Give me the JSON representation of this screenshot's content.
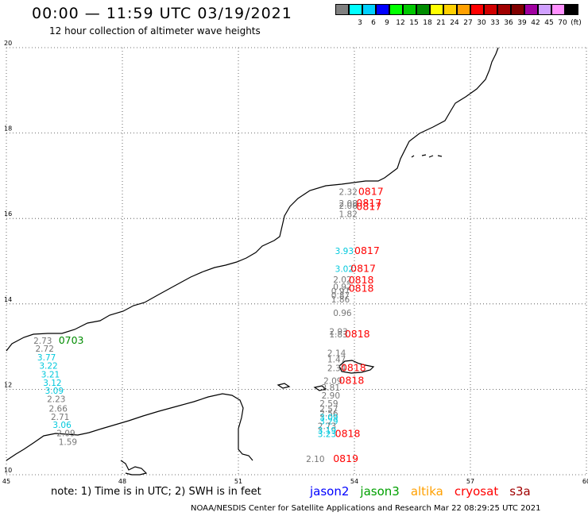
{
  "header": {
    "title": "00:00 — 11:59 UTC 03/19/2021",
    "subtitle": "12 hour collection of altimeter wave heights"
  },
  "scale": {
    "swatches": [
      {
        "label": "",
        "color": "#808080"
      },
      {
        "label": "3",
        "color": "#00ffff"
      },
      {
        "label": "6",
        "color": "#00d0ff"
      },
      {
        "label": "9",
        "color": "#0000ff"
      },
      {
        "label": "12",
        "color": "#00ff00"
      },
      {
        "label": "15",
        "color": "#00c800"
      },
      {
        "label": "18",
        "color": "#008c00"
      },
      {
        "label": "21",
        "color": "#ffff00"
      },
      {
        "label": "24",
        "color": "#ffd000"
      },
      {
        "label": "27",
        "color": "#ffa000"
      },
      {
        "label": "30",
        "color": "#ff0000"
      },
      {
        "label": "33",
        "color": "#d00000"
      },
      {
        "label": "36",
        "color": "#a00000"
      },
      {
        "label": "39",
        "color": "#800000"
      },
      {
        "label": "42",
        "color": "#a000a0"
      },
      {
        "label": "45",
        "color": "#d0a0ff"
      },
      {
        "label": "70",
        "color": "#ff90ff"
      },
      {
        "label": "(ft)",
        "color": "#000000"
      }
    ]
  },
  "map": {
    "lon_ticks": [
      "45",
      "48",
      "51",
      "54",
      "57",
      "60"
    ],
    "lat_ticks": [
      "20",
      "18",
      "16",
      "14",
      "12",
      "10"
    ],
    "colors": {
      "gray": "#777777",
      "cyan": "#00c8dc",
      "red": "#ff0000",
      "green": "#008c00"
    },
    "heights": [
      {
        "v": "2.32",
        "lon": 53.6,
        "lat": 16.55,
        "c": "gray"
      },
      {
        "v": "2.08",
        "lon": 53.6,
        "lat": 16.28,
        "c": "gray"
      },
      {
        "v": "2.08",
        "lon": 53.6,
        "lat": 16.23,
        "c": "gray"
      },
      {
        "v": "1.82",
        "lon": 53.6,
        "lat": 16.03,
        "c": "gray"
      },
      {
        "v": "3.93",
        "lon": 53.5,
        "lat": 15.17,
        "c": "cyan"
      },
      {
        "v": "3.02",
        "lon": 53.5,
        "lat": 14.75,
        "c": "cyan"
      },
      {
        "v": "2.02",
        "lon": 53.45,
        "lat": 14.5,
        "c": "gray"
      },
      {
        "v": "0.92",
        "lon": 53.45,
        "lat": 14.33,
        "c": "gray"
      },
      {
        "v": "0.97",
        "lon": 53.4,
        "lat": 14.23,
        "c": "gray"
      },
      {
        "v": "0.87",
        "lon": 53.4,
        "lat": 14.13,
        "c": "gray"
      },
      {
        "v": "1.86",
        "lon": 53.4,
        "lat": 14.03,
        "c": "gray"
      },
      {
        "v": "0.96",
        "lon": 53.45,
        "lat": 13.72,
        "c": "gray"
      },
      {
        "v": "2.93",
        "lon": 53.35,
        "lat": 13.28,
        "c": "gray"
      },
      {
        "v": "1.83",
        "lon": 53.35,
        "lat": 13.22,
        "c": "gray"
      },
      {
        "v": "2.73",
        "lon": 45.7,
        "lat": 13.07,
        "c": "gray"
      },
      {
        "v": "2.72",
        "lon": 45.75,
        "lat": 12.88,
        "c": "gray"
      },
      {
        "v": "3.77",
        "lon": 45.8,
        "lat": 12.68,
        "c": "cyan"
      },
      {
        "v": "3.22",
        "lon": 45.85,
        "lat": 12.48,
        "c": "cyan"
      },
      {
        "v": "3.21",
        "lon": 45.9,
        "lat": 12.28,
        "c": "cyan"
      },
      {
        "v": "3.12",
        "lon": 45.95,
        "lat": 12.08,
        "c": "cyan"
      },
      {
        "v": "3.09",
        "lon": 46.0,
        "lat": 11.9,
        "c": "cyan"
      },
      {
        "v": "2.23",
        "lon": 46.05,
        "lat": 11.7,
        "c": "gray"
      },
      {
        "v": "2.66",
        "lon": 46.1,
        "lat": 11.48,
        "c": "gray"
      },
      {
        "v": "2.71",
        "lon": 46.15,
        "lat": 11.28,
        "c": "gray"
      },
      {
        "v": "3.06",
        "lon": 46.2,
        "lat": 11.1,
        "c": "cyan"
      },
      {
        "v": "2.09",
        "lon": 46.3,
        "lat": 10.9,
        "c": "gray"
      },
      {
        "v": "1.59",
        "lon": 46.35,
        "lat": 10.7,
        "c": "gray"
      },
      {
        "v": "2.14",
        "lon": 53.3,
        "lat": 12.78,
        "c": "gray"
      },
      {
        "v": "1.47",
        "lon": 53.3,
        "lat": 12.63,
        "c": "gray"
      },
      {
        "v": "2.34",
        "lon": 53.3,
        "lat": 12.43,
        "c": "gray"
      },
      {
        "v": "2.09",
        "lon": 53.2,
        "lat": 12.13,
        "c": "gray"
      },
      {
        "v": "2.81",
        "lon": 53.15,
        "lat": 11.97,
        "c": "gray"
      },
      {
        "v": "2.90",
        "lon": 53.15,
        "lat": 11.78,
        "c": "gray"
      },
      {
        "v": "2.59",
        "lon": 53.1,
        "lat": 11.6,
        "c": "gray"
      },
      {
        "v": "2.57",
        "lon": 53.1,
        "lat": 11.47,
        "c": "gray"
      },
      {
        "v": "2.56",
        "lon": 53.1,
        "lat": 11.37,
        "c": "gray"
      },
      {
        "v": "3.09",
        "lon": 53.1,
        "lat": 11.27,
        "c": "cyan"
      },
      {
        "v": "3.29",
        "lon": 53.1,
        "lat": 11.18,
        "c": "cyan"
      },
      {
        "v": "2.73",
        "lon": 53.05,
        "lat": 11.07,
        "c": "gray"
      },
      {
        "v": "3.19",
        "lon": 53.05,
        "lat": 10.97,
        "c": "cyan"
      },
      {
        "v": "3.23",
        "lon": 53.05,
        "lat": 10.88,
        "c": "cyan"
      },
      {
        "v": "2.10",
        "lon": 52.75,
        "lat": 10.3,
        "c": "gray"
      }
    ],
    "times": [
      {
        "v": "0817",
        "lon": 54.1,
        "lat": 16.55,
        "c": "red"
      },
      {
        "v": "0817",
        "lon": 54.05,
        "lat": 16.28,
        "c": "red"
      },
      {
        "v": "0817",
        "lon": 54.05,
        "lat": 16.2,
        "c": "red"
      },
      {
        "v": "0817",
        "lon": 54.0,
        "lat": 15.17,
        "c": "red"
      },
      {
        "v": "0817",
        "lon": 53.9,
        "lat": 14.75,
        "c": "red"
      },
      {
        "v": "0818",
        "lon": 53.85,
        "lat": 14.48,
        "c": "red"
      },
      {
        "v": "0818",
        "lon": 53.85,
        "lat": 14.28,
        "c": "red"
      },
      {
        "v": "0818",
        "lon": 53.75,
        "lat": 13.22,
        "c": "red"
      },
      {
        "v": "0703",
        "lon": 46.35,
        "lat": 13.07,
        "c": "green"
      },
      {
        "v": "0818",
        "lon": 53.65,
        "lat": 12.43,
        "c": "red"
      },
      {
        "v": "0818",
        "lon": 53.6,
        "lat": 12.13,
        "c": "red"
      },
      {
        "v": "0818",
        "lon": 53.5,
        "lat": 10.88,
        "c": "red"
      },
      {
        "v": "0819",
        "lon": 53.45,
        "lat": 10.3,
        "c": "red"
      }
    ]
  },
  "footer": {
    "note": "note: 1) Time is in UTC; 2) SWH is in feet",
    "satellites": [
      {
        "name": "jason2",
        "color": "#0000ff"
      },
      {
        "name": "jason3",
        "color": "#00a000"
      },
      {
        "name": "altika",
        "color": "#ffa000"
      },
      {
        "name": "cryosat",
        "color": "#ff0000"
      },
      {
        "name": "s3a",
        "color": "#a00000"
      }
    ],
    "credit": "NOAA/NESDIS Center for Satellite Applications and Research   Mar 22 08:29:25 UTC 2021"
  }
}
